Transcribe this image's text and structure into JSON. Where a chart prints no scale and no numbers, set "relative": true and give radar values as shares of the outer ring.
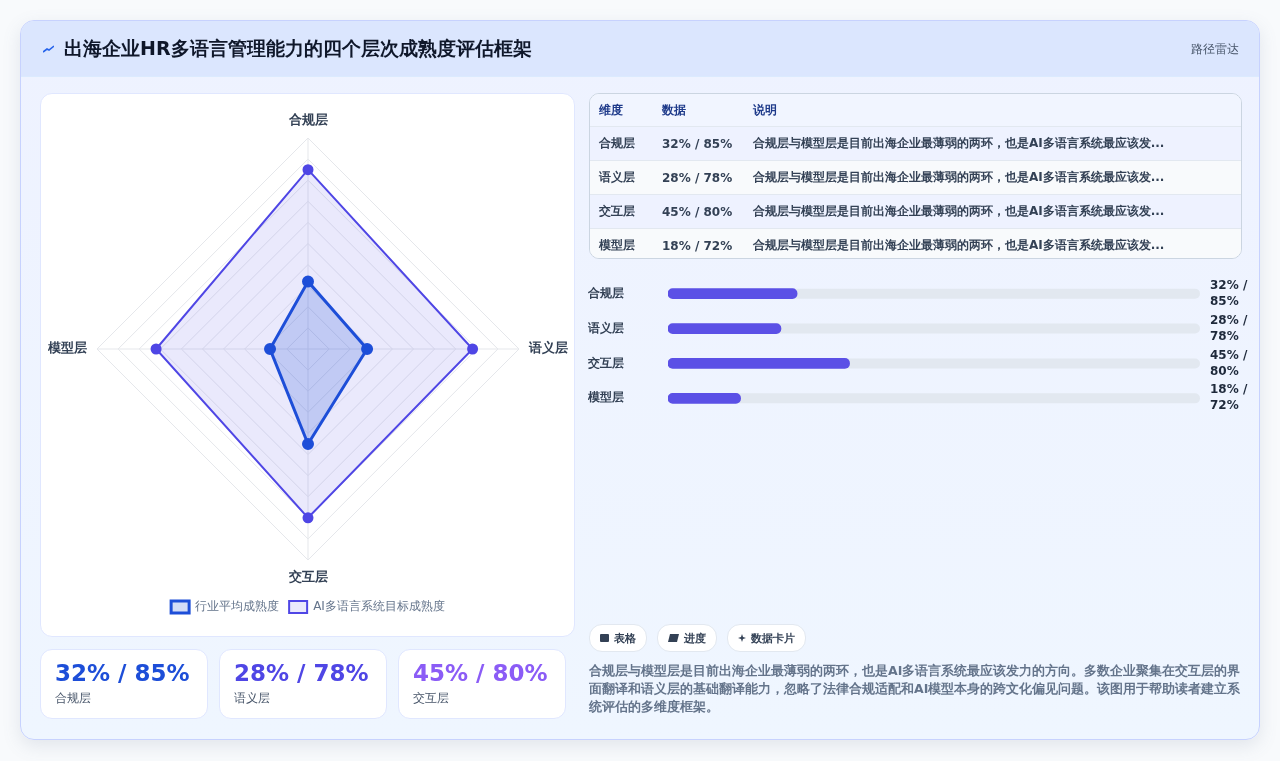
{
  "chart_data": [
    {
      "type": "radar",
      "title": "出海企业HR多语言管理能力的四个层次成熟度评估框架",
      "annotations": [
        "路径雷达"
      ],
      "categories": [
        "合规层",
        "语义层",
        "交互层",
        "模型层"
      ],
      "series": [
        {
          "name": "行业平均成熟度",
          "color": "#1d4ed8",
          "values": [
            0.32,
            0.28,
            0.45,
            0.18
          ]
        },
        {
          "name": "AI多语言系统目标成熟度",
          "color": "#4f46e5",
          "values": [
            0.85,
            0.78,
            0.8,
            0.72
          ]
        }
      ],
      "relative": true,
      "grid": true,
      "legend": "bottom",
      "marker": "circle"
    },
    {
      "type": "other",
      "annotations": [
        "维度",
        "数据",
        "说明",
        "合规层",
        "32% / 85%",
        "合规层与模型层是目前出海企业最薄弱的两环，也是AI多语言系统最应该发...",
        "语义层",
        "28% / 78%",
        "合规层与模型层是目前出海企业最薄弱的两环，也是AI多语言系统最应该发...",
        "交互层",
        "45% / 80%",
        "合规层与模型层是目前出海企业最薄弱的两环，也是AI多语言系统最应该发...",
        "模型层",
        "18% / 72%",
        "合规层与模型层是目前出海企业最薄弱的两环，也是AI多语言系统最应该发..."
      ]
    },
    {
      "type": "bar",
      "orientation": "horizontal",
      "categories": [
        "合规层",
        "语义层",
        "交互层",
        "模型层"
      ],
      "values": [
        32,
        28,
        45,
        18
      ],
      "color": "#5b50e6",
      "value_labels": [
        "32% / 85%",
        "28% / 78%",
        "45% / 80%",
        "18% / 72%"
      ]
    },
    {
      "type": "other",
      "annotations": [
        "32% / 85%",
        "合规层",
        "28% / 78%",
        "语义层",
        "45% / 80%",
        "交互层"
      ]
    },
    {
      "type": "other",
      "annotations": [
        "表格",
        "进度",
        "数据卡片",
        "合规层与模型层是目前出海企业最薄弱的两环，也是AI多语言系统最应该发力的方向。多数企业聚集在交互层的界面翻译和语义层的基础翻译能力，忽略了法律合规适配和AI模型本身的跨文化偏见问题。该图用于帮助读者建立系统评估的多维度框架。"
      ]
    }
  ]
}
